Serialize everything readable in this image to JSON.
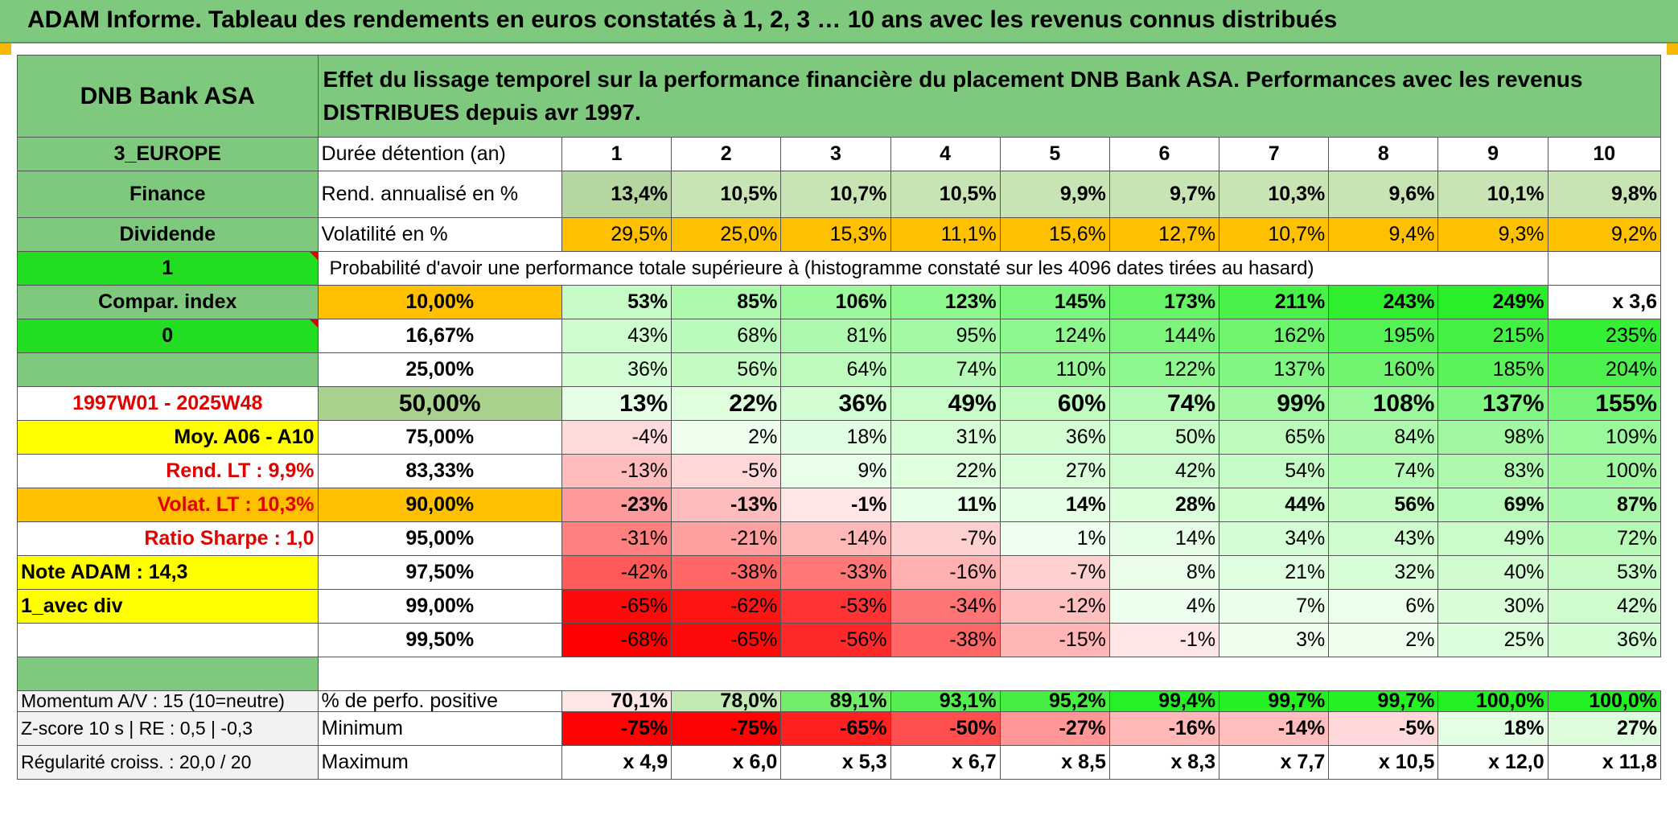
{
  "title": "ADAM Informe. Tableau des rendements en euros constatés à 1, 2, 3 … 10 ans avec les revenus connus distribués",
  "left": {
    "name": "DNB Bank ASA",
    "region": "3_EUROPE",
    "sector": "Finance",
    "type": "Dividende",
    "flag1": "1",
    "compar": "Compar. index",
    "flag0": "0",
    "period": "1997W01 - 2025W48",
    "moy": "Moy. A06 - A10",
    "rend_lt": "Rend. LT :   9,9%",
    "volat_lt": "Volat. LT :   10,3%",
    "sharpe": "Ratio Sharpe :   1,0",
    "note": "Note ADAM : 14,3",
    "avec_div": "1_avec div",
    "momentum": "Momentum A/V : 15 (10=neutre)",
    "zscore": "Z-score 10 s | RE : 0,5 | -0,3",
    "regularite": "Régularité croiss. : 20,0 / 20"
  },
  "header_desc": "Effet du lissage temporel sur la performance financière du placement DNB Bank ASA. Performances avec les revenus DISTRIBUES depuis avr 1997.",
  "row_labels": {
    "duree": "Durée détention (an)",
    "rend": "Rend. annualisé en %",
    "vol": "Volatilité en %",
    "prob": "Probabilité d'avoir une performance totale supérieure à (histogramme constaté sur les 4096 dates tirées au hasard)",
    "pos": "% de perfo. positive",
    "min": "Minimum",
    "max": "Maximum"
  },
  "years": [
    "1",
    "2",
    "3",
    "4",
    "5",
    "6",
    "7",
    "8",
    "9",
    "10"
  ],
  "rend": [
    "13,4%",
    "10,5%",
    "10,7%",
    "10,5%",
    "9,9%",
    "9,7%",
    "10,3%",
    "9,6%",
    "10,1%",
    "9,8%"
  ],
  "vol": [
    "29,5%",
    "25,0%",
    "15,3%",
    "11,1%",
    "15,6%",
    "12,7%",
    "10,7%",
    "9,4%",
    "9,3%",
    "9,2%"
  ],
  "quantiles": [
    {
      "p": "10,00%",
      "v": [
        "53%",
        "85%",
        "106%",
        "123%",
        "145%",
        "173%",
        "211%",
        "243%",
        "249%",
        "x 3,6"
      ]
    },
    {
      "p": "16,67%",
      "v": [
        "43%",
        "68%",
        "81%",
        "95%",
        "124%",
        "144%",
        "162%",
        "195%",
        "215%",
        "235%"
      ]
    },
    {
      "p": "25,00%",
      "v": [
        "36%",
        "56%",
        "64%",
        "74%",
        "110%",
        "122%",
        "137%",
        "160%",
        "185%",
        "204%"
      ]
    },
    {
      "p": "50,00%",
      "v": [
        "13%",
        "22%",
        "36%",
        "49%",
        "60%",
        "74%",
        "99%",
        "108%",
        "137%",
        "155%"
      ]
    },
    {
      "p": "75,00%",
      "v": [
        "-4%",
        "2%",
        "18%",
        "31%",
        "36%",
        "50%",
        "65%",
        "84%",
        "98%",
        "109%"
      ]
    },
    {
      "p": "83,33%",
      "v": [
        "-13%",
        "-5%",
        "9%",
        "22%",
        "27%",
        "42%",
        "54%",
        "74%",
        "83%",
        "100%"
      ]
    },
    {
      "p": "90,00%",
      "v": [
        "-23%",
        "-13%",
        "-1%",
        "11%",
        "14%",
        "28%",
        "44%",
        "56%",
        "69%",
        "87%"
      ]
    },
    {
      "p": "95,00%",
      "v": [
        "-31%",
        "-21%",
        "-14%",
        "-7%",
        "1%",
        "14%",
        "34%",
        "43%",
        "49%",
        "72%"
      ]
    },
    {
      "p": "97,50%",
      "v": [
        "-42%",
        "-38%",
        "-33%",
        "-16%",
        "-7%",
        "8%",
        "21%",
        "32%",
        "40%",
        "53%"
      ]
    },
    {
      "p": "99,00%",
      "v": [
        "-65%",
        "-62%",
        "-53%",
        "-34%",
        "-12%",
        "4%",
        "7%",
        "6%",
        "30%",
        "42%"
      ]
    },
    {
      "p": "99,50%",
      "v": [
        "-68%",
        "-65%",
        "-56%",
        "-38%",
        "-15%",
        "-1%",
        "3%",
        "2%",
        "25%",
        "36%"
      ]
    }
  ],
  "pos": [
    "70,1%",
    "78,0%",
    "89,1%",
    "93,1%",
    "95,2%",
    "99,4%",
    "99,7%",
    "99,7%",
    "100,0%",
    "100,0%"
  ],
  "min": [
    "-75%",
    "-75%",
    "-65%",
    "-50%",
    "-27%",
    "-16%",
    "-14%",
    "-5%",
    "18%",
    "27%"
  ],
  "max": [
    "x 4,9",
    "x 6,0",
    "x 5,3",
    "x 6,7",
    "x 8,5",
    "x 8,3",
    "x 7,7",
    "x 10,5",
    "x 12,0",
    "x 11,8"
  ],
  "colors": {
    "header_green": "#7fc97f",
    "bright_green": "#22dd22",
    "orange": "#ffc000",
    "yellow": "#ffff00",
    "red_text": "#e00000"
  }
}
